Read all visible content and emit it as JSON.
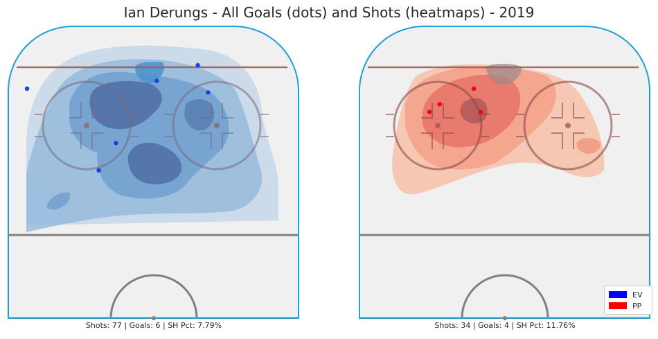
{
  "title": "Ian Derungs - All Goals (dots) and Shots (heatmaps) - 2019",
  "colors": {
    "ev": "#0000ff",
    "pp": "#ff0000",
    "rink_board": "#1f9fd6",
    "goal_line": "#a05a5a",
    "blue_line": "#7f7f7f",
    "ice": "#f0f0f0"
  },
  "chart_data": [
    {
      "type": "scatter",
      "panel": "left",
      "strength": "EV",
      "caption": "Shots: 77 | Goals: 6 | SH Pct: 7.79%",
      "shots": 77,
      "goals": 6,
      "sh_pct": "7.79%",
      "heatmap_color": "#3a7fbf",
      "goal_color": "#1f3fdf",
      "goal_points": [
        {
          "x": -37,
          "y": 84
        },
        {
          "x": 13,
          "y": 90
        },
        {
          "x": 1,
          "y": 86
        },
        {
          "x": 16,
          "y": 83
        },
        {
          "x": -11,
          "y": 70
        },
        {
          "x": -16,
          "y": 63
        }
      ]
    },
    {
      "type": "scatter",
      "panel": "right",
      "strength": "PP",
      "caption": "Shots: 34 | Goals: 4 | SH Pct: 11.76%",
      "shots": 34,
      "goals": 4,
      "sh_pct": "11.76%",
      "heatmap_color": "#e8432e",
      "goal_color": "#ff0000",
      "goal_points": [
        {
          "x": -19,
          "y": 80
        },
        {
          "x": -22,
          "y": 78
        },
        {
          "x": -9,
          "y": 84
        },
        {
          "x": -7,
          "y": 78
        }
      ]
    }
  ],
  "legend": [
    {
      "label": "EV",
      "color": "#0000ff"
    },
    {
      "label": "PP",
      "color": "#ff0000"
    }
  ]
}
